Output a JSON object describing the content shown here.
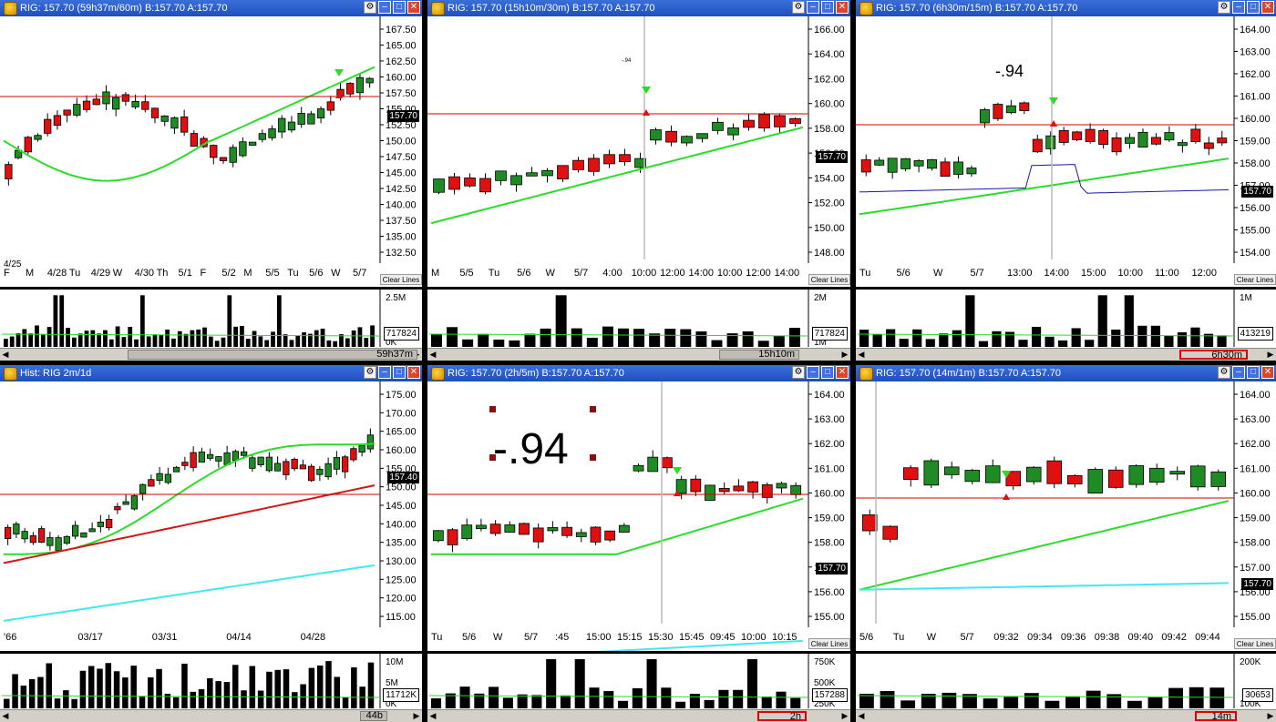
{
  "panels": [
    {
      "title": "RIG: 157.70 (59h37m/60m)  B:157.70  A:157.70",
      "price_tag": "157.70",
      "vol_tag": "717824",
      "scroll_label": "59h37m",
      "scroll_highlight": false,
      "clear_lines": "Clear Lines",
      "y_ticks": [
        "167.50",
        "165.00",
        "162.50",
        "160.00",
        "157.50",
        "155.00",
        "152.50",
        "150.00",
        "147.50",
        "145.00",
        "142.50",
        "140.00",
        "137.50",
        "135.00",
        "132.50"
      ],
      "vol_ticks": [
        "2.5M",
        "0K"
      ],
      "date_row1": [
        "4/25"
      ],
      "x_labels": [
        "F",
        "M",
        "4/28",
        "Tu",
        "4/29",
        "W",
        "4/30",
        "Th",
        "5/1",
        "F",
        "5/2",
        "M",
        "5/5",
        "Tu",
        "5/6",
        "W",
        "5/7"
      ],
      "annotation": ""
    },
    {
      "title": "RIG: 157.70 (15h10m/30m)  B:157.70  A:157.70",
      "price_tag": "157.70",
      "vol_tag": "717824",
      "scroll_label": "15h10m",
      "scroll_highlight": false,
      "clear_lines": "Clear Lines",
      "y_ticks": [
        "166.00",
        "164.00",
        "162.00",
        "160.00",
        "158.00",
        "156.00",
        "154.00",
        "152.00",
        "150.00",
        "148.00"
      ],
      "vol_ticks": [
        "2M",
        "1M"
      ],
      "x_labels": [
        "M",
        "5/5",
        "Tu",
        "5/6",
        "W",
        "5/7",
        "4:00",
        "10:00",
        "12:00",
        "14:00",
        "10:00",
        "12:00",
        "14:00"
      ],
      "annotation": "-.94"
    },
    {
      "title": "RIG: 157.70 (6h30m/15m)  B:157.70  A:157.70",
      "price_tag": "157.70",
      "vol_tag": "413219",
      "scroll_label": "6h30m",
      "scroll_highlight": true,
      "clear_lines": "Clear Lines",
      "y_ticks": [
        "164.00",
        "163.00",
        "162.00",
        "161.00",
        "160.00",
        "159.00",
        "158.00",
        "157.00",
        "156.00",
        "155.00",
        "154.00"
      ],
      "vol_ticks": [
        "1M"
      ],
      "x_labels": [
        "Tu",
        "5/6",
        "W",
        "5/7",
        "13:00",
        "14:00",
        "15:00",
        "10:00",
        "11:00",
        "12:00"
      ],
      "annotation": "-.94"
    },
    {
      "title": "Hist: RIG 2m/1d",
      "price_tag": "157.40",
      "vol_tag": "11712K",
      "scroll_label": "44b",
      "scroll_highlight": false,
      "clear_lines": "",
      "y_ticks": [
        "175.00",
        "170.00",
        "165.00",
        "160.00",
        "155.00",
        "150.00",
        "145.00",
        "140.00",
        "135.00",
        "130.00",
        "125.00",
        "120.00",
        "115.00"
      ],
      "vol_ticks": [
        "10M",
        "5M",
        "0K"
      ],
      "x_labels": [
        "'66",
        "03/17",
        "03/31",
        "04/14",
        "04/28"
      ],
      "annotation": ""
    },
    {
      "title": "RIG: 157.70 (2h/5m)  B:157.70  A:157.70",
      "price_tag": "157.70",
      "vol_tag": "157288",
      "scroll_label": "2h",
      "scroll_highlight": true,
      "clear_lines": "Clear Lines",
      "y_ticks": [
        "164.00",
        "163.00",
        "162.00",
        "161.00",
        "160.00",
        "159.00",
        "158.00",
        "157.00",
        "156.00",
        "155.00"
      ],
      "vol_ticks": [
        "750K",
        "500K",
        "250K"
      ],
      "x_labels": [
        "Tu",
        "5/6",
        "W",
        "5/7",
        ":45",
        "15:00",
        "15:15",
        "15:30",
        "15:45",
        "09:45",
        "10:00",
        "10:15"
      ],
      "annotation": "-.94"
    },
    {
      "title": "RIG: 157.70 (14m/1m)  B:157.70  A:157.70",
      "price_tag": "157.70",
      "vol_tag": "30653",
      "scroll_label": "14m",
      "scroll_highlight": true,
      "clear_lines": "Clear Lines",
      "y_ticks": [
        "164.00",
        "163.00",
        "162.00",
        "161.00",
        "160.00",
        "159.00",
        "158.00",
        "157.00",
        "156.00",
        "155.00"
      ],
      "vol_ticks": [
        "200K",
        "100K"
      ],
      "x_labels": [
        "5/6",
        "Tu",
        "W",
        "5/7",
        "09:32",
        "09:34",
        "09:36",
        "09:38",
        "09:40",
        "09:42",
        "09:44"
      ],
      "annotation": ""
    }
  ],
  "colors": {
    "up": "#1e8b24",
    "down": "#e01010",
    "ma_fast": "#2bdc2b",
    "ma_slow": "#d01818",
    "ma_long": "#40e8f0",
    "vwap": "#1a1aa0",
    "hline": "#d00000",
    "titlebar": "#2456c8"
  },
  "icons": [
    "app-icon",
    "options-icon",
    "minimize-icon",
    "maximize-icon",
    "close-icon",
    "scroll-left-icon",
    "scroll-right-icon"
  ]
}
